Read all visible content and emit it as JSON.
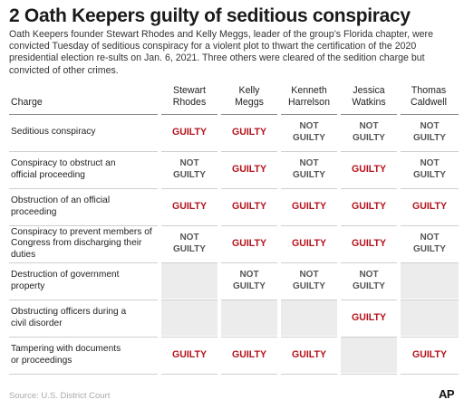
{
  "title": "2 Oath Keepers guilty of seditious conspiracy",
  "intro": "Oath Keepers founder Stewart Rhodes and Kelly Meggs, leader of the group’s Florida chapter, were convicted Tuesday of seditious conspiracy for a violent plot to thwart the certification of the 2020 presidential election re-sults on Jan. 6, 2021. Three others were cleared of the sedition charge but convicted of other crimes.",
  "table": {
    "charge_header": "Charge",
    "defendants": [
      "Stewart\nRhodes",
      "Kelly\nMeggs",
      "Kenneth\nHarrelson",
      "Jessica\nWatkins",
      "Thomas\nCaldwell"
    ],
    "rows": [
      {
        "charge": "Seditious conspiracy",
        "verdicts": [
          "GUILTY",
          "GUILTY",
          "NOT\nGUILTY",
          "NOT\nGUILTY",
          "NOT\nGUILTY"
        ]
      },
      {
        "charge": "Conspiracy to obstruct an\nofficial proceeding",
        "verdicts": [
          "NOT\nGUILTY",
          "GUILTY",
          "NOT\nGUILTY",
          "GUILTY",
          "NOT\nGUILTY"
        ]
      },
      {
        "charge": "Obstruction of an official proceeding",
        "verdicts": [
          "GUILTY",
          "GUILTY",
          "GUILTY",
          "GUILTY",
          "GUILTY"
        ]
      },
      {
        "charge": "Conspiracy to prevent members of\nCongress from discharging their duties",
        "verdicts": [
          "NOT\nGUILTY",
          "GUILTY",
          "GUILTY",
          "GUILTY",
          "NOT\nGUILTY"
        ]
      },
      {
        "charge": "Destruction of government property",
        "verdicts": [
          "",
          "NOT\nGUILTY",
          "NOT\nGUILTY",
          "NOT\nGUILTY",
          ""
        ]
      },
      {
        "charge": "Obstructing officers during a\ncivil disorder",
        "verdicts": [
          "",
          "",
          "",
          "GUILTY",
          ""
        ]
      },
      {
        "charge": "Tampering with documents\nor proceedings",
        "verdicts": [
          "GUILTY",
          "GUILTY",
          "GUILTY",
          "",
          "GUILTY"
        ]
      }
    ]
  },
  "source": "Source: U.S. District Court",
  "logo": "AP",
  "colors": {
    "guilty": "#b5121b",
    "not_guilty": "#555555",
    "empty_cell": "#ececec"
  }
}
